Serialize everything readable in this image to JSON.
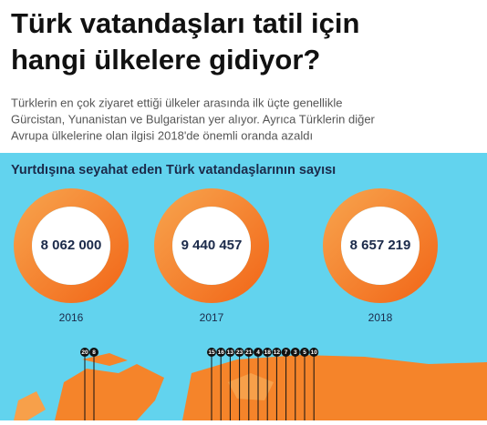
{
  "header": {
    "title": [
      "Türk vatandaşları tatil için",
      "hangi ülkelere gidiyor?"
    ],
    "subtitle": [
      "Türklerin en çok ziyaret ettiği ülkeler arasında ilk üçte genellikle",
      "Gürcistan, Yunanistan ve Bulgaristan yer alıyor. Ayrıca Türklerin diğer",
      "Avrupa ülkelerine olan ilgisi 2018'de önemli oranda azaldı"
    ]
  },
  "section": {
    "title": "Yurtdışına seyahat eden Türk vatandaşlarının sayısı",
    "donuts": [
      {
        "value": "8 062 000",
        "year": "2016"
      },
      {
        "value": "9 440 457",
        "year": "2017"
      },
      {
        "value": "8 657 219",
        "year": "2018"
      }
    ]
  },
  "map": {
    "pins_left": [
      "20",
      "8"
    ],
    "pins_right": [
      "15",
      "16",
      "13",
      "23",
      "21",
      "4",
      "18",
      "12",
      "7",
      "3",
      "5",
      "10"
    ]
  }
}
